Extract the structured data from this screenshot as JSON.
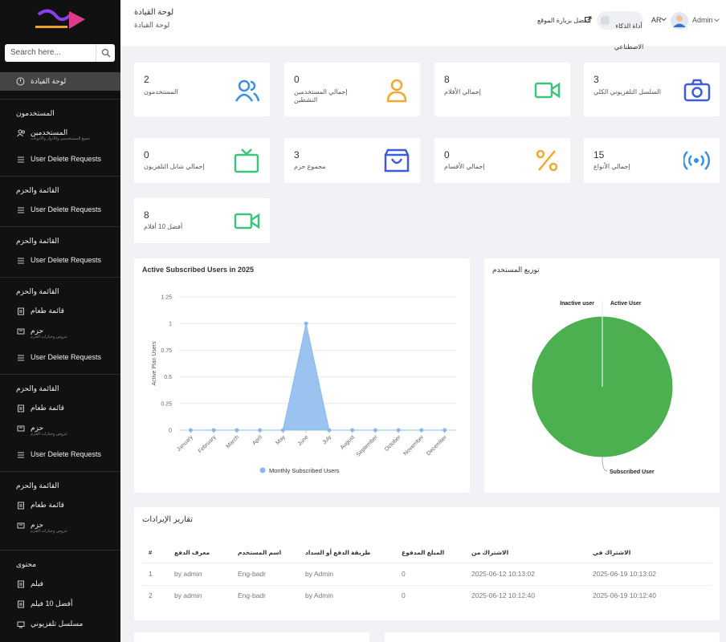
{
  "sidebar": {
    "search_placeholder": "Search here...",
    "active_item": "لوحة القيادة",
    "sections": [
      {
        "title": "المستخدمون",
        "items": [
          {
            "label": "المستخدمين",
            "sub": "جميع المستخدمين والأدوار والأذونات",
            "icon": "users"
          },
          {
            "label": "User Delete Requests",
            "icon": "list"
          }
        ]
      },
      {
        "title": "القائمة والحزم",
        "items": [
          {
            "label": "User Delete Requests",
            "icon": "list"
          }
        ]
      },
      {
        "title": "القائمة والحزم",
        "items": [
          {
            "label": "User Delete Requests",
            "icon": "list"
          }
        ]
      },
      {
        "title": "القائمة والحزم",
        "items": [
          {
            "label": "قائمة طعام",
            "icon": "doc"
          },
          {
            "label": "حزم",
            "sub": "عروض وخيارات الحزم",
            "icon": "box"
          },
          {
            "label": "User Delete Requests",
            "icon": "list"
          }
        ]
      },
      {
        "title": "القائمة والحزم",
        "items": [
          {
            "label": "قائمة طعام",
            "icon": "doc"
          },
          {
            "label": "حزم",
            "sub": "عروض وخيارات الحزم",
            "icon": "box"
          },
          {
            "label": "User Delete Requests",
            "icon": "list"
          }
        ]
      },
      {
        "title": "القائمة والحزم",
        "items": [
          {
            "label": "قائمة طعام",
            "icon": "doc"
          },
          {
            "label": "حزم",
            "sub": "عروض وخيارات الحزم",
            "icon": "box"
          }
        ]
      },
      {
        "title": "محتوى",
        "items": [
          {
            "label": "فيلم",
            "icon": "doc"
          },
          {
            "label": "أفضل 10 فيلم",
            "icon": "doc"
          },
          {
            "label": "مسلسل تلفزيوني",
            "icon": "tv"
          }
        ]
      }
    ]
  },
  "header": {
    "title": "لوحة القيادة",
    "breadcrumb": "لوحة القيادة",
    "visit_site": "تفضل بزيارة الموقع",
    "ai_tool": "أداة الذكاء الاصطناعي",
    "language": "AR",
    "user": "Admin"
  },
  "stats": [
    {
      "value": 2,
      "label": "المستخدمون"
    },
    {
      "value": 0,
      "label": "إجمالي المستخدمين النشطين"
    },
    {
      "value": 8,
      "label": "إجمالي الأفلام"
    },
    {
      "value": 3,
      "label": "السلسل التلفزيوني الكلي"
    },
    {
      "value": 0,
      "label": "إجمالي شانل التلفزيون"
    },
    {
      "value": 3,
      "label": "مجموع حزم"
    },
    {
      "value": 0,
      "label": "إجمالي الأقسام"
    },
    {
      "value": 15,
      "label": "إجمالي الأنواع"
    },
    {
      "value": 8,
      "label": "أفضل 10 أفلام"
    }
  ],
  "chart_data": [
    {
      "type": "area",
      "title": "Active Subscribed Users in 2025",
      "y_label": "Active Plan Users",
      "categories": [
        "January",
        "February",
        "March",
        "April",
        "May",
        "June",
        "July",
        "August",
        "September",
        "October",
        "November",
        "December"
      ],
      "series": [
        {
          "name": "Monthly Subscribed Users",
          "color": "#8ab8ec",
          "values": [
            0,
            0,
            0,
            0,
            0,
            1,
            0,
            0,
            0,
            0,
            0,
            0
          ]
        }
      ],
      "ylim": [
        0,
        1.25
      ],
      "yticks": [
        0,
        0.25,
        0.5,
        0.75,
        1,
        1.25
      ],
      "grid": true
    },
    {
      "type": "pie",
      "title": "توزيع المستخدم",
      "categories": [
        "Inactive user",
        "Active User",
        "Subscribed User"
      ],
      "values": [
        0,
        0,
        1
      ],
      "colors": [
        "#e0e0e0",
        "#2196f3",
        "#4caf50"
      ]
    }
  ],
  "revenue": {
    "title": "تقارير الإيرادات",
    "columns": [
      "#",
      "معرف الدفع",
      "اسم المستخدم",
      "طريقة الدفع أو السداد",
      "المبلغ المدفوع",
      "الاشتراك من",
      "الاشتراك في"
    ],
    "rows": [
      [
        1,
        "by admin",
        "Eng-badr",
        "by Admin",
        0,
        "2025-06-12 10:13:02",
        "2025-06-19 10:13:02"
      ],
      [
        2,
        "by admin",
        "Eng-badr",
        "by Admin",
        0,
        "2025-06-12 10:12:40",
        "2025-06-19 10:12:40"
      ]
    ]
  }
}
